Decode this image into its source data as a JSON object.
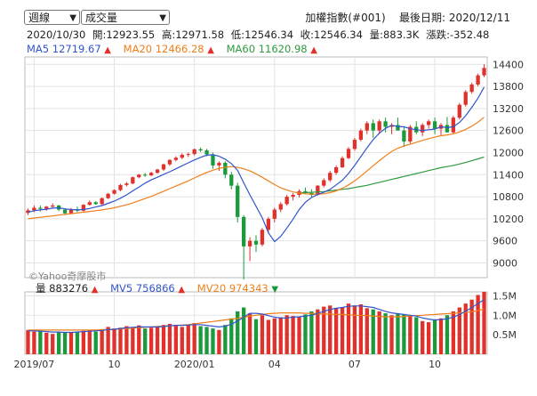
{
  "controls": {
    "period_select": "週線",
    "metric_select": "成交量"
  },
  "header": {
    "index_name": "加權指數(#001)",
    "last_date_label": "最後日期: 2020/12/11",
    "bar_date": "2020/10/30",
    "open": "開:12923.55",
    "high": "高:12971.58",
    "low": "低:12546.34",
    "close": "收:12546.34",
    "volume": "量:883.3K",
    "change": "漲跌:-352.48"
  },
  "legend": {
    "ma5": "MA5 12719.67",
    "ma20": "MA20 12466.28",
    "ma60": "MA60 11620.98"
  },
  "volume_legend": {
    "vol": "量 883276",
    "mv5": "MV5 756866",
    "mv20": "MV20 974343"
  },
  "watermark": "©Yahoo奇摩股市",
  "colors": {
    "up": "#e0312a",
    "down": "#1a9a3b",
    "ma5": "#3355cc",
    "ma20": "#f07f1a",
    "ma60": "#2e9b3e",
    "grid": "#e3e3e3"
  },
  "chart_data": {
    "type": "candlestick",
    "price_axis": {
      "ticks": [
        9000,
        9600,
        10200,
        10800,
        11400,
        12000,
        12600,
        13200,
        13800,
        14400
      ],
      "range": [
        8600,
        14600
      ]
    },
    "volume_axis": {
      "ticks": [
        "0.5M",
        "1.0M",
        "1.5M"
      ],
      "tick_values": [
        0.5,
        1.0,
        1.5
      ],
      "range": [
        0,
        1.6
      ]
    },
    "x_tick_labels": [
      "2019/07",
      "10",
      "2020/01",
      "04",
      "07",
      "10"
    ],
    "x_tick_index": [
      1,
      14,
      27,
      40,
      53,
      66
    ],
    "candles": [
      [
        10360,
        10480,
        10300,
        10430
      ],
      [
        10430,
        10560,
        10380,
        10500
      ],
      [
        10500,
        10560,
        10400,
        10470
      ],
      [
        10470,
        10550,
        10420,
        10530
      ],
      [
        10530,
        10620,
        10500,
        10560
      ],
      [
        10560,
        10580,
        10410,
        10450
      ],
      [
        10450,
        10480,
        10300,
        10350
      ],
      [
        10350,
        10500,
        10330,
        10460
      ],
      [
        10460,
        10530,
        10380,
        10420
      ],
      [
        10420,
        10600,
        10400,
        10580
      ],
      [
        10580,
        10700,
        10560,
        10650
      ],
      [
        10650,
        10680,
        10580,
        10600
      ],
      [
        10600,
        10780,
        10580,
        10760
      ],
      [
        10760,
        10900,
        10740,
        10880
      ],
      [
        10880,
        11000,
        10860,
        10980
      ],
      [
        10980,
        11150,
        10950,
        11120
      ],
      [
        11120,
        11200,
        11080,
        11160
      ],
      [
        11160,
        11350,
        11140,
        11330
      ],
      [
        11330,
        11420,
        11300,
        11400
      ],
      [
        11400,
        11450,
        11340,
        11380
      ],
      [
        11380,
        11480,
        11360,
        11450
      ],
      [
        11450,
        11560,
        11430,
        11540
      ],
      [
        11540,
        11700,
        11500,
        11680
      ],
      [
        11680,
        11820,
        11640,
        11800
      ],
      [
        11800,
        11900,
        11760,
        11860
      ],
      [
        11860,
        11980,
        11820,
        11940
      ],
      [
        11940,
        12000,
        11880,
        11960
      ],
      [
        11960,
        12110,
        11920,
        12090
      ],
      [
        12090,
        12140,
        12020,
        12060
      ],
      [
        12060,
        12100,
        11900,
        11950
      ],
      [
        11950,
        12000,
        11560,
        11650
      ],
      [
        11650,
        11760,
        11500,
        11720
      ],
      [
        11720,
        11760,
        11300,
        11400
      ],
      [
        11400,
        11480,
        11000,
        11100
      ],
      [
        11100,
        11180,
        10100,
        10250
      ],
      [
        10250,
        10300,
        8550,
        9450
      ],
      [
        9450,
        9700,
        9050,
        9600
      ],
      [
        9600,
        9750,
        9300,
        9500
      ],
      [
        9500,
        9950,
        9450,
        9900
      ],
      [
        9900,
        10250,
        9800,
        10200
      ],
      [
        10200,
        10500,
        10100,
        10450
      ],
      [
        10450,
        10650,
        10380,
        10600
      ],
      [
        10600,
        10850,
        10560,
        10800
      ],
      [
        10800,
        10900,
        10700,
        10850
      ],
      [
        10850,
        11000,
        10780,
        10950
      ],
      [
        10950,
        11050,
        10880,
        10900
      ],
      [
        10900,
        11000,
        10800,
        10850
      ],
      [
        10850,
        11120,
        10830,
        11100
      ],
      [
        11100,
        11300,
        11050,
        11250
      ],
      [
        11250,
        11500,
        11200,
        11450
      ],
      [
        11450,
        11650,
        11400,
        11600
      ],
      [
        11600,
        11900,
        11580,
        11850
      ],
      [
        11850,
        12150,
        11820,
        12100
      ],
      [
        12100,
        12400,
        12050,
        12350
      ],
      [
        12350,
        12650,
        12300,
        12600
      ],
      [
        12600,
        12850,
        12500,
        12800
      ],
      [
        12800,
        12900,
        12400,
        12600
      ],
      [
        12600,
        12900,
        12500,
        12850
      ],
      [
        12850,
        12950,
        12550,
        12700
      ],
      [
        12700,
        12800,
        12500,
        12750
      ],
      [
        12750,
        12950,
        12650,
        12600
      ],
      [
        12600,
        12700,
        12150,
        12300
      ],
      [
        12300,
        12750,
        12250,
        12700
      ],
      [
        12700,
        12850,
        12500,
        12550
      ],
      [
        12550,
        12800,
        12450,
        12750
      ],
      [
        12750,
        12900,
        12650,
        12850
      ],
      [
        12850,
        12950,
        12500,
        12650
      ],
      [
        12650,
        12800,
        12450,
        12750
      ],
      [
        12750,
        12970,
        12540,
        12550
      ],
      [
        12550,
        13000,
        12520,
        12950
      ],
      [
        12950,
        13350,
        12900,
        13300
      ],
      [
        13300,
        13700,
        13250,
        13650
      ],
      [
        13650,
        13900,
        13600,
        13850
      ],
      [
        13850,
        14150,
        13800,
        14100
      ],
      [
        14100,
        14400,
        14050,
        14300
      ]
    ],
    "ma5": [
      10380,
      10420,
      10440,
      10460,
      10490,
      10500,
      10470,
      10450,
      10440,
      10450,
      10480,
      10520,
      10560,
      10620,
      10680,
      10760,
      10850,
      10960,
      11060,
      11170,
      11260,
      11330,
      11410,
      11480,
      11560,
      11640,
      11720,
      11800,
      11870,
      11930,
      11940,
      11900,
      11820,
      11700,
      11520,
      11180,
      10850,
      10540,
      10230,
      9820,
      9580,
      9720,
      9950,
      10190,
      10450,
      10650,
      10780,
      10860,
      10920,
      11000,
      11120,
      11250,
      11430,
      11650,
      11890,
      12130,
      12350,
      12530,
      12660,
      12740,
      12710,
      12700,
      12650,
      12620,
      12600,
      12620,
      12640,
      12700,
      12680,
      12700,
      12820,
      13000,
      13230,
      13480,
      13780
    ],
    "ma20": [
      10200,
      10220,
      10240,
      10260,
      10280,
      10300,
      10320,
      10340,
      10360,
      10380,
      10400,
      10420,
      10440,
      10470,
      10500,
      10540,
      10580,
      10630,
      10690,
      10750,
      10810,
      10880,
      10950,
      11020,
      11090,
      11160,
      11230,
      11310,
      11390,
      11460,
      11520,
      11570,
      11600,
      11620,
      11600,
      11560,
      11500,
      11420,
      11330,
      11230,
      11130,
      11040,
      10980,
      10930,
      10900,
      10880,
      10870,
      10870,
      10880,
      10910,
      10960,
      11030,
      11120,
      11230,
      11360,
      11500,
      11640,
      11780,
      11910,
      12030,
      12120,
      12180,
      12230,
      12280,
      12330,
      12380,
      12420,
      12460,
      12480,
      12510,
      12560,
      12630,
      12720,
      12830,
      12960
    ],
    "ma60": [
      null,
      null,
      null,
      null,
      null,
      null,
      null,
      null,
      null,
      null,
      null,
      null,
      null,
      null,
      null,
      null,
      null,
      null,
      null,
      null,
      null,
      null,
      null,
      null,
      null,
      null,
      null,
      null,
      null,
      null,
      null,
      null,
      null,
      null,
      null,
      null,
      null,
      null,
      null,
      null,
      null,
      null,
      null,
      null,
      10900,
      10910,
      10920,
      10930,
      10940,
      10960,
      10980,
      11000,
      11020,
      11050,
      11080,
      11110,
      11150,
      11190,
      11230,
      11270,
      11310,
      11350,
      11390,
      11430,
      11470,
      11510,
      11550,
      11590,
      11620,
      11650,
      11690,
      11730,
      11780,
      11830,
      11880
    ],
    "volume": [
      0.62,
      0.58,
      0.6,
      0.55,
      0.52,
      0.58,
      0.56,
      0.55,
      0.58,
      0.6,
      0.62,
      0.58,
      0.64,
      0.7,
      0.66,
      0.68,
      0.72,
      0.7,
      0.74,
      0.66,
      0.68,
      0.72,
      0.75,
      0.78,
      0.74,
      0.7,
      0.76,
      0.8,
      0.72,
      0.7,
      0.66,
      0.62,
      0.75,
      0.92,
      1.1,
      1.2,
      1.05,
      0.9,
      1.0,
      0.88,
      0.92,
      0.95,
      1.0,
      0.98,
      0.95,
      1.02,
      1.1,
      1.15,
      1.22,
      1.25,
      1.18,
      1.2,
      1.3,
      1.25,
      1.28,
      1.18,
      1.15,
      1.1,
      1.05,
      1.0,
      1.05,
      1.02,
      0.98,
      0.95,
      0.85,
      0.82,
      0.88,
      0.92,
      1.0,
      1.1,
      1.2,
      1.3,
      1.4,
      1.52,
      1.6
    ],
    "mv5": [
      0.6,
      0.6,
      0.59,
      0.58,
      0.57,
      0.57,
      0.56,
      0.56,
      0.57,
      0.58,
      0.59,
      0.6,
      0.61,
      0.63,
      0.64,
      0.66,
      0.68,
      0.69,
      0.7,
      0.7,
      0.7,
      0.7,
      0.71,
      0.73,
      0.74,
      0.74,
      0.75,
      0.76,
      0.76,
      0.74,
      0.72,
      0.7,
      0.72,
      0.77,
      0.85,
      0.95,
      1.05,
      1.05,
      1.03,
      0.99,
      0.95,
      0.93,
      0.93,
      0.95,
      0.96,
      0.98,
      1.0,
      1.05,
      1.1,
      1.15,
      1.18,
      1.2,
      1.23,
      1.24,
      1.24,
      1.22,
      1.2,
      1.15,
      1.1,
      1.06,
      1.04,
      1.02,
      1.0,
      0.98,
      0.93,
      0.9,
      0.88,
      0.89,
      0.91,
      0.95,
      1.02,
      1.1,
      1.2,
      1.3,
      1.4
    ],
    "mv20": [
      0.62,
      0.62,
      0.62,
      0.62,
      0.62,
      0.62,
      0.62,
      0.62,
      0.62,
      0.62,
      0.62,
      0.62,
      0.63,
      0.63,
      0.64,
      0.65,
      0.66,
      0.67,
      0.68,
      0.69,
      0.7,
      0.71,
      0.72,
      0.73,
      0.74,
      0.75,
      0.76,
      0.78,
      0.8,
      0.82,
      0.84,
      0.86,
      0.88,
      0.9,
      0.92,
      0.95,
      0.98,
      1.0,
      1.02,
      1.04,
      1.05,
      1.06,
      1.06,
      1.06,
      1.06,
      1.05,
      1.05,
      1.04,
      1.03,
      1.03,
      1.02,
      1.02,
      1.01,
      1.0,
      1.0,
      0.99,
      0.98,
      0.97,
      0.96,
      0.96,
      0.96,
      0.97,
      0.98,
      0.99,
      1.0,
      1.01,
      1.02,
      1.03,
      1.04,
      1.05,
      1.06,
      1.07,
      1.09,
      1.12,
      1.16
    ]
  }
}
